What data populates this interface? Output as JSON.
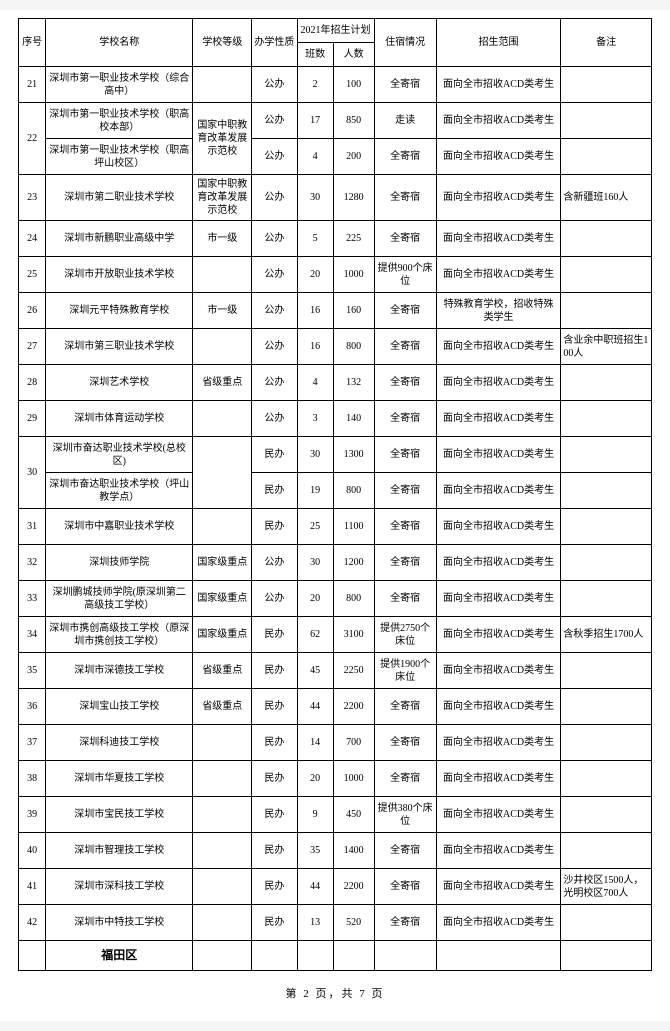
{
  "headers": {
    "index": "序号",
    "school_name": "学校名称",
    "school_level": "学校等级",
    "school_type": "办学性质",
    "plan_group": "2021年招生计划",
    "classes": "班数",
    "people": "人数",
    "boarding": "住宿情况",
    "scope": "招生范围",
    "remarks": "备注"
  },
  "rows": [
    {
      "index": "21",
      "name": "深圳市第一职业技术学校（综合高中）",
      "level": "",
      "type": "公办",
      "classes": "2",
      "people": "100",
      "boarding": "全寄宿",
      "scope": "面向全市招收ACD类考生",
      "remarks": ""
    },
    {
      "index": "22",
      "rowspan": 2,
      "name": "深圳市第一职业技术学校（职高校本部）",
      "level": "国家中职教育改革发展示范校",
      "level_rowspan": 2,
      "type": "公办",
      "classes": "17",
      "people": "850",
      "boarding": "走读",
      "scope": "面向全市招收ACD类考生",
      "remarks": ""
    },
    {
      "name": "深圳市第一职业技术学校（职高坪山校区）",
      "type": "公办",
      "classes": "4",
      "people": "200",
      "boarding": "全寄宿",
      "scope": "面向全市招收ACD类考生",
      "remarks": ""
    },
    {
      "index": "23",
      "name": "深圳市第二职业技术学校",
      "level": "国家中职教育改革发展示范校",
      "type": "公办",
      "classes": "30",
      "people": "1280",
      "boarding": "全寄宿",
      "scope": "面向全市招收ACD类考生",
      "remarks": "含新疆班160人"
    },
    {
      "index": "24",
      "name": "深圳市新鹏职业高级中学",
      "level": "市一级",
      "type": "公办",
      "classes": "5",
      "people": "225",
      "boarding": "全寄宿",
      "scope": "面向全市招收ACD类考生",
      "remarks": ""
    },
    {
      "index": "25",
      "name": "深圳市开放职业技术学校",
      "level": "",
      "type": "公办",
      "classes": "20",
      "people": "1000",
      "boarding": "提供900个床位",
      "scope": "面向全市招收ACD类考生",
      "remarks": ""
    },
    {
      "index": "26",
      "name": "深圳元平特殊教育学校",
      "level": "市一级",
      "type": "公办",
      "classes": "16",
      "people": "160",
      "boarding": "全寄宿",
      "scope": "特殊教育学校，招收特殊类学生",
      "remarks": ""
    },
    {
      "index": "27",
      "name": "深圳市第三职业技术学校",
      "level": "",
      "type": "公办",
      "classes": "16",
      "people": "800",
      "boarding": "全寄宿",
      "scope": "面向全市招收ACD类考生",
      "remarks": "含业余中职班招生100人"
    },
    {
      "index": "28",
      "name": "深圳艺术学校",
      "level": "省级重点",
      "type": "公办",
      "classes": "4",
      "people": "132",
      "boarding": "全寄宿",
      "scope": "面向全市招收ACD类考生",
      "remarks": ""
    },
    {
      "index": "29",
      "name": "深圳市体育运动学校",
      "level": "",
      "type": "公办",
      "classes": "3",
      "people": "140",
      "boarding": "全寄宿",
      "scope": "面向全市招收ACD类考生",
      "remarks": ""
    },
    {
      "index": "30",
      "rowspan": 2,
      "name": "深圳市奋达职业技术学校(总校区)",
      "level": "",
      "level_rowspan": 2,
      "type": "民办",
      "classes": "30",
      "people": "1300",
      "boarding": "全寄宿",
      "scope": "面向全市招收ACD类考生",
      "remarks": ""
    },
    {
      "name": "深圳市奋达职业技术学校（坪山教学点）",
      "type": "民办",
      "classes": "19",
      "people": "800",
      "boarding": "全寄宿",
      "scope": "面向全市招收ACD类考生",
      "remarks": ""
    },
    {
      "index": "31",
      "name": "深圳市中嘉职业技术学校",
      "level": "",
      "type": "民办",
      "classes": "25",
      "people": "1100",
      "boarding": "全寄宿",
      "scope": "面向全市招收ACD类考生",
      "remarks": ""
    },
    {
      "index": "32",
      "name": "深圳技师学院",
      "level": "国家级重点",
      "type": "公办",
      "classes": "30",
      "people": "1200",
      "boarding": "全寄宿",
      "scope": "面向全市招收ACD类考生",
      "remarks": ""
    },
    {
      "index": "33",
      "name": "深圳鹏城技师学院(原深圳第二高级技工学校）",
      "level": "国家级重点",
      "type": "公办",
      "classes": "20",
      "people": "800",
      "boarding": "全寄宿",
      "scope": "面向全市招收ACD类考生",
      "remarks": ""
    },
    {
      "index": "34",
      "name": "深圳市携创高级技工学校（原深圳市携创技工学校）",
      "level": "国家级重点",
      "type": "民办",
      "classes": "62",
      "people": "3100",
      "boarding": "提供2750个床位",
      "scope": "面向全市招收ACD类考生",
      "remarks": "含秋季招生1700人"
    },
    {
      "index": "35",
      "name": "深圳市深德技工学校",
      "level": "省级重点",
      "type": "民办",
      "classes": "45",
      "people": "2250",
      "boarding": "提供1900个床位",
      "scope": "面向全市招收ACD类考生",
      "remarks": ""
    },
    {
      "index": "36",
      "name": "深圳宝山技工学校",
      "level": "省级重点",
      "type": "民办",
      "classes": "44",
      "people": "2200",
      "boarding": "全寄宿",
      "scope": "面向全市招收ACD类考生",
      "remarks": ""
    },
    {
      "index": "37",
      "name": "深圳科迪技工学校",
      "level": "",
      "type": "民办",
      "classes": "14",
      "people": "700",
      "boarding": "全寄宿",
      "scope": "面向全市招收ACD类考生",
      "remarks": ""
    },
    {
      "index": "38",
      "name": "深圳市华夏技工学校",
      "level": "",
      "type": "民办",
      "classes": "20",
      "people": "1000",
      "boarding": "全寄宿",
      "scope": "面向全市招收ACD类考生",
      "remarks": ""
    },
    {
      "index": "39",
      "name": "深圳市宝民技工学校",
      "level": "",
      "type": "民办",
      "classes": "9",
      "people": "450",
      "boarding": "提供380个床位",
      "scope": "面向全市招收ACD类考生",
      "remarks": ""
    },
    {
      "index": "40",
      "name": "深圳市智理技工学校",
      "level": "",
      "type": "民办",
      "classes": "35",
      "people": "1400",
      "boarding": "全寄宿",
      "scope": "面向全市招收ACD类考生",
      "remarks": ""
    },
    {
      "index": "41",
      "name": "深圳市深科技工学校",
      "level": "",
      "type": "民办",
      "classes": "44",
      "people": "2200",
      "boarding": "全寄宿",
      "scope": "面向全市招收ACD类考生",
      "remarks": "沙井校区1500人，光明校区700人"
    },
    {
      "index": "42",
      "name": "深圳市中特技工学校",
      "level": "",
      "type": "民办",
      "classes": "13",
      "people": "520",
      "boarding": "全寄宿",
      "scope": "面向全市招收ACD类考生",
      "remarks": ""
    }
  ],
  "district": "福田区",
  "footer": "第 2 页，共 7 页"
}
